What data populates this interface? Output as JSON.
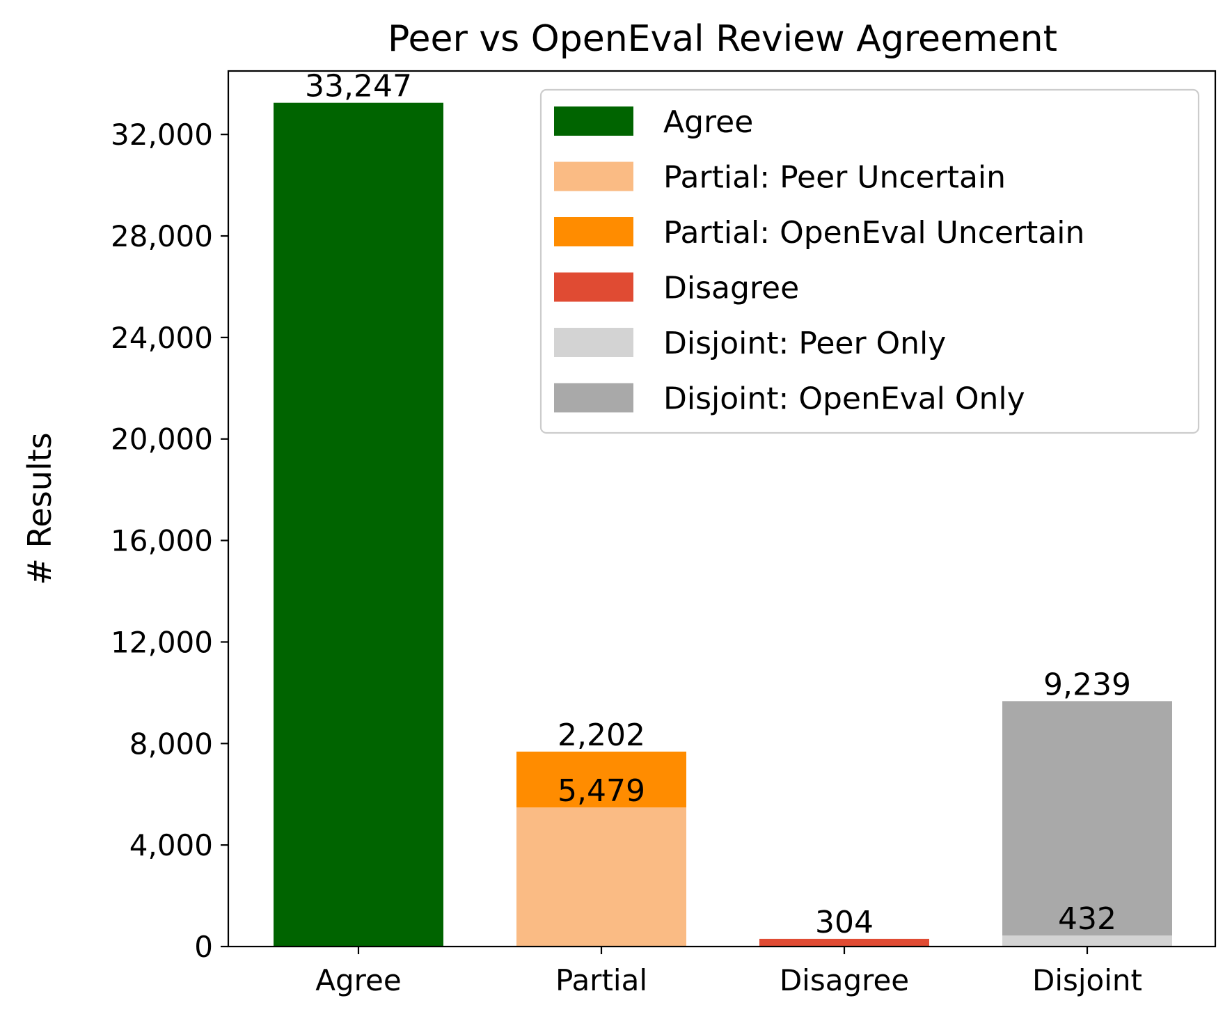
{
  "chart_data": {
    "type": "bar",
    "stacked": true,
    "title": "Peer vs OpenEval Review Agreement",
    "xlabel": "",
    "ylabel": "# Results",
    "ylim": [
      0,
      34500
    ],
    "yticks": [
      0,
      4000,
      8000,
      12000,
      16000,
      20000,
      24000,
      28000,
      32000
    ],
    "ytick_labels": [
      "0",
      "4,000",
      "8,000",
      "12,000",
      "16,000",
      "20,000",
      "24,000",
      "28,000",
      "32,000"
    ],
    "categories": [
      "Agree",
      "Partial",
      "Disagree",
      "Disjoint"
    ],
    "series": [
      {
        "name": "Agree",
        "color": "#006400",
        "values": [
          33247,
          0,
          0,
          0
        ]
      },
      {
        "name": "Partial: Peer Uncertain",
        "color": "#FABB84",
        "values": [
          0,
          5479,
          0,
          0
        ]
      },
      {
        "name": "Partial: OpenEval Uncertain",
        "color": "#FF8C00",
        "values": [
          0,
          2202,
          0,
          0
        ]
      },
      {
        "name": "Disagree",
        "color": "#E04B33",
        "values": [
          0,
          0,
          304,
          0
        ]
      },
      {
        "name": "Disjoint: Peer Only",
        "color": "#D3D3D3",
        "values": [
          0,
          0,
          0,
          432
        ]
      },
      {
        "name": "Disjoint: OpenEval Only",
        "color": "#A9A9A9",
        "values": [
          0,
          0,
          0,
          9239
        ]
      }
    ],
    "data_labels": [
      {
        "text": "33,247",
        "category": "Agree",
        "series": "Agree"
      },
      {
        "text": "5,479",
        "category": "Partial",
        "series": "Partial: Peer Uncertain"
      },
      {
        "text": "2,202",
        "category": "Partial",
        "series": "Partial: OpenEval Uncertain"
      },
      {
        "text": "304",
        "category": "Disagree",
        "series": "Disagree"
      },
      {
        "text": "432",
        "category": "Disjoint",
        "series": "Disjoint: Peer Only"
      },
      {
        "text": "9,239",
        "category": "Disjoint",
        "series": "Disjoint: OpenEval Only"
      }
    ],
    "legend": {
      "position": "upper right",
      "frame": true
    },
    "grid": false
  }
}
